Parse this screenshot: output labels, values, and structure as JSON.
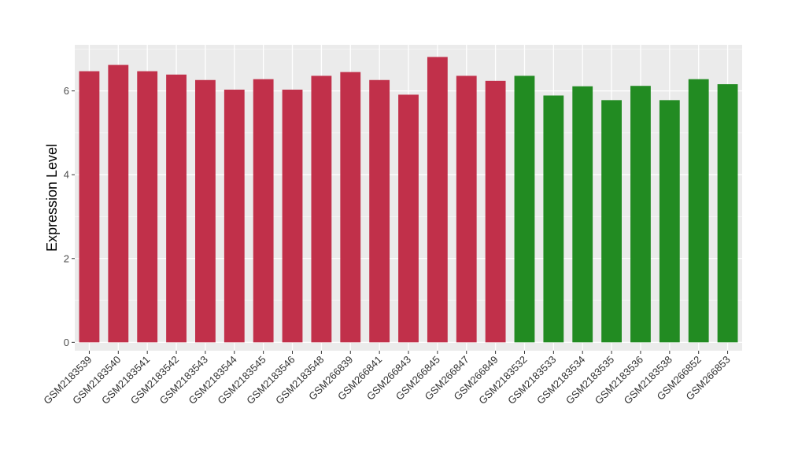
{
  "chart_data": {
    "type": "bar",
    "title": "",
    "xlabel": "",
    "ylabel": "Expression Level",
    "ylim": [
      -0.2,
      7.1
    ],
    "yticks": [
      0,
      2,
      4,
      6
    ],
    "grid": true,
    "legend": "none",
    "panel_background": "#ebebeb",
    "colors": {
      "red": "#c1304a",
      "green": "#228b22"
    },
    "categories": [
      "GSM2183539",
      "GSM2183540",
      "GSM2183541",
      "GSM2183542",
      "GSM2183543",
      "GSM2183544",
      "GSM2183545",
      "GSM2183546",
      "GSM2183548",
      "GSM266839",
      "GSM266841",
      "GSM266843",
      "GSM266845",
      "GSM266847",
      "GSM266849",
      "GSM2183532",
      "GSM2183533",
      "GSM2183534",
      "GSM2183535",
      "GSM2183536",
      "GSM2183538",
      "GSM266852",
      "GSM266853"
    ],
    "values": [
      6.47,
      6.62,
      6.47,
      6.39,
      6.26,
      6.03,
      6.28,
      6.03,
      6.36,
      6.45,
      6.26,
      5.91,
      6.81,
      6.36,
      6.24,
      6.36,
      5.89,
      6.11,
      5.78,
      6.12,
      5.78,
      6.28,
      6.16
    ],
    "bar_colors": [
      "#c1304a",
      "#c1304a",
      "#c1304a",
      "#c1304a",
      "#c1304a",
      "#c1304a",
      "#c1304a",
      "#c1304a",
      "#c1304a",
      "#c1304a",
      "#c1304a",
      "#c1304a",
      "#c1304a",
      "#c1304a",
      "#c1304a",
      "#228b22",
      "#228b22",
      "#228b22",
      "#228b22",
      "#228b22",
      "#228b22",
      "#228b22",
      "#228b22"
    ]
  }
}
